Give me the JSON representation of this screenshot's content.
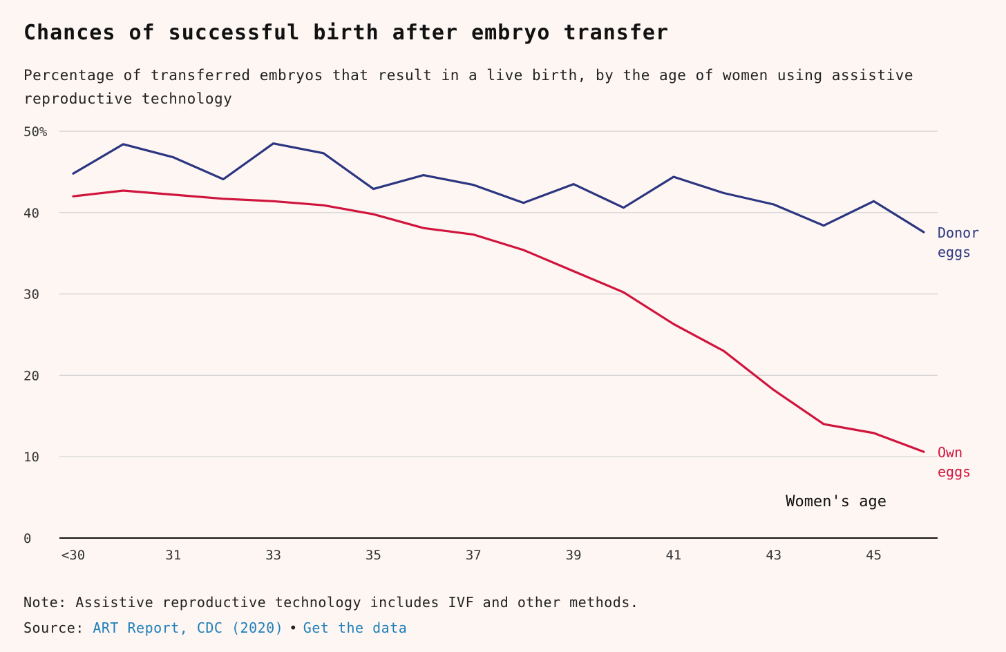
{
  "title": "Chances of successful birth after embryo transfer",
  "subtitle": "Percentage of transferred embryos that result in a live birth, by the age of women using assistive reproductive technology",
  "note": "Note: Assistive reproductive technology includes IVF and other methods.",
  "source": {
    "prefix": "Source:",
    "link_label": "ART Report, CDC (2020)",
    "separator": "•",
    "data_link_label": "Get the data"
  },
  "colors": {
    "donor": "#2b3580",
    "own": "#d0143c",
    "grid": "#cfcfcf",
    "axis": "#111111",
    "link": "#1f7fb8"
  },
  "chart_data": {
    "type": "line",
    "title": "Chances of successful birth after embryo transfer",
    "xlabel": "Women's age",
    "ylabel": "",
    "x": [
      "<30",
      "30",
      "31",
      "32",
      "33",
      "34",
      "35",
      "36",
      "37",
      "38",
      "39",
      "40",
      "41",
      "42",
      "43",
      "44",
      "45",
      "46"
    ],
    "x_tick_labels": [
      "<30",
      "31",
      "33",
      "35",
      "37",
      "39",
      "41",
      "43",
      "45"
    ],
    "y_tick_labels": [
      "0",
      "10",
      "20",
      "30",
      "40",
      "50%"
    ],
    "ylim": [
      0,
      50
    ],
    "grid": true,
    "legend": "inline-right",
    "series": [
      {
        "name": "Donor eggs",
        "label_lines": [
          "Donor",
          "eggs"
        ],
        "values": [
          44.8,
          48.4,
          46.8,
          44.1,
          48.5,
          47.3,
          42.9,
          44.6,
          43.4,
          41.2,
          43.5,
          40.6,
          44.4,
          42.4,
          41.0,
          38.4,
          41.4,
          37.6
        ]
      },
      {
        "name": "Own eggs",
        "label_lines": [
          "Own",
          "eggs"
        ],
        "values": [
          42.0,
          42.7,
          42.2,
          41.7,
          41.4,
          40.9,
          39.8,
          38.1,
          37.3,
          35.4,
          32.8,
          30.2,
          26.3,
          23.0,
          18.2,
          14.0,
          12.9,
          10.6
        ]
      }
    ]
  }
}
